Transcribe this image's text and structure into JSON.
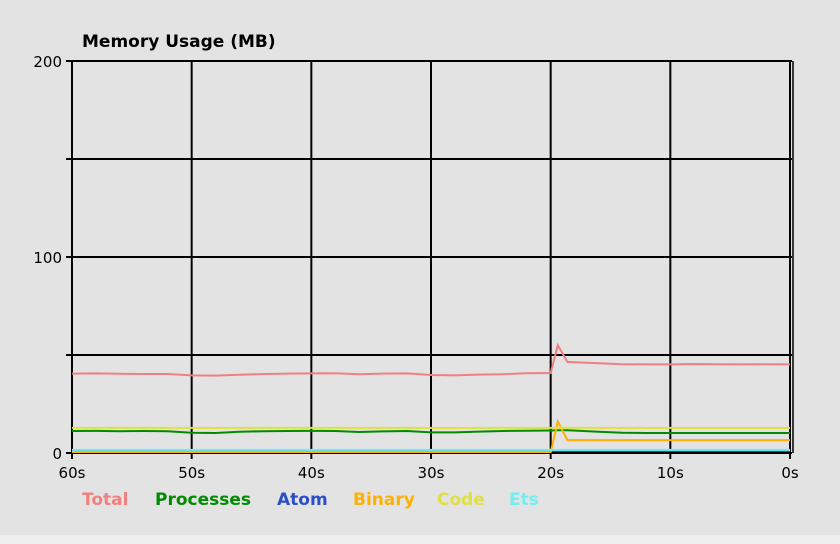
{
  "chart_data": {
    "type": "line",
    "title": "Memory Usage (MB)",
    "xlabel": "",
    "ylabel": "",
    "xlim": [
      60,
      0
    ],
    "ylim": [
      0,
      200
    ],
    "x_ticks": [
      "60s",
      "50s",
      "40s",
      "30s",
      "20s",
      "10s",
      "0s"
    ],
    "x_tick_values": [
      60,
      50,
      40,
      30,
      20,
      10,
      0
    ],
    "y_ticks": [
      "0",
      "100",
      "200"
    ],
    "y_tick_values": [
      0,
      100,
      200
    ],
    "y_gridlines": [
      0,
      50,
      100,
      150,
      200
    ],
    "grid": true,
    "legend_position": "bottom",
    "x": [
      60,
      58,
      56,
      54,
      52,
      50,
      48,
      46,
      44,
      42,
      40,
      38,
      36,
      34,
      32,
      30,
      28,
      26,
      24,
      22,
      20,
      19.4,
      18.6,
      16,
      14,
      12,
      10,
      8,
      6,
      4,
      2,
      0
    ],
    "series": [
      {
        "name": "Total",
        "color": "#f08080",
        "values": [
          40.5,
          40.6,
          40.4,
          40.3,
          40.3,
          39.6,
          39.5,
          39.9,
          40.3,
          40.5,
          40.6,
          40.7,
          40.2,
          40.5,
          40.6,
          39.8,
          39.6,
          40.0,
          40.2,
          40.7,
          40.8,
          55,
          46.5,
          45.8,
          45.3,
          45.2,
          45.2,
          45.4,
          45.3,
          45.2,
          45.3,
          45.2
        ]
      },
      {
        "name": "Processes",
        "color": "#008c00",
        "values": [
          11.2,
          11.3,
          11.1,
          11.2,
          11.1,
          10.3,
          10.2,
          10.8,
          11.1,
          11.2,
          11.3,
          11.2,
          10.7,
          11.0,
          11.2,
          10.5,
          10.5,
          10.9,
          11.2,
          11.4,
          11.5,
          11.6,
          11.6,
          10.8,
          10.3,
          10.2,
          10.2,
          10.2,
          10.2,
          10.2,
          10.2,
          10.2
        ]
      },
      {
        "name": "Atom",
        "color": "#2a4fc8",
        "values": [
          1.0,
          1.0,
          1.0,
          1.0,
          1.0,
          1.0,
          1.0,
          1.0,
          1.0,
          1.0,
          1.0,
          1.0,
          1.0,
          1.0,
          1.0,
          1.0,
          1.0,
          1.0,
          1.0,
          1.0,
          1.0,
          1.0,
          1.0,
          1.0,
          1.0,
          1.0,
          1.0,
          1.0,
          1.0,
          1.0,
          1.0,
          1.0
        ]
      },
      {
        "name": "Binary",
        "color": "#ffb000",
        "values": [
          0.5,
          0.5,
          0.5,
          0.5,
          0.5,
          0.5,
          0.5,
          0.5,
          0.5,
          0.5,
          0.5,
          0.5,
          0.5,
          0.5,
          0.5,
          0.5,
          0.5,
          0.5,
          0.5,
          0.5,
          0.5,
          16,
          6.6,
          6.6,
          6.6,
          6.6,
          6.6,
          6.6,
          6.6,
          6.6,
          6.6,
          6.6
        ]
      },
      {
        "name": "Code",
        "color": "#e0e040",
        "values": [
          12.8,
          12.8,
          12.8,
          12.8,
          12.8,
          12.8,
          12.8,
          12.8,
          12.8,
          12.8,
          12.8,
          12.8,
          12.8,
          12.8,
          12.8,
          12.8,
          12.8,
          12.8,
          12.8,
          12.8,
          12.8,
          12.8,
          12.8,
          12.8,
          12.8,
          12.8,
          12.8,
          12.8,
          12.8,
          12.8,
          12.8,
          12.8
        ]
      },
      {
        "name": "Ets",
        "color": "#70f0f0",
        "values": [
          1.6,
          1.6,
          1.6,
          1.6,
          1.6,
          1.6,
          1.6,
          1.6,
          1.6,
          1.6,
          1.6,
          1.6,
          1.6,
          1.6,
          1.6,
          1.6,
          1.6,
          1.6,
          1.6,
          1.6,
          1.6,
          1.6,
          1.6,
          1.6,
          1.6,
          1.6,
          1.6,
          1.6,
          1.6,
          1.6,
          1.6,
          1.6
        ]
      }
    ]
  }
}
